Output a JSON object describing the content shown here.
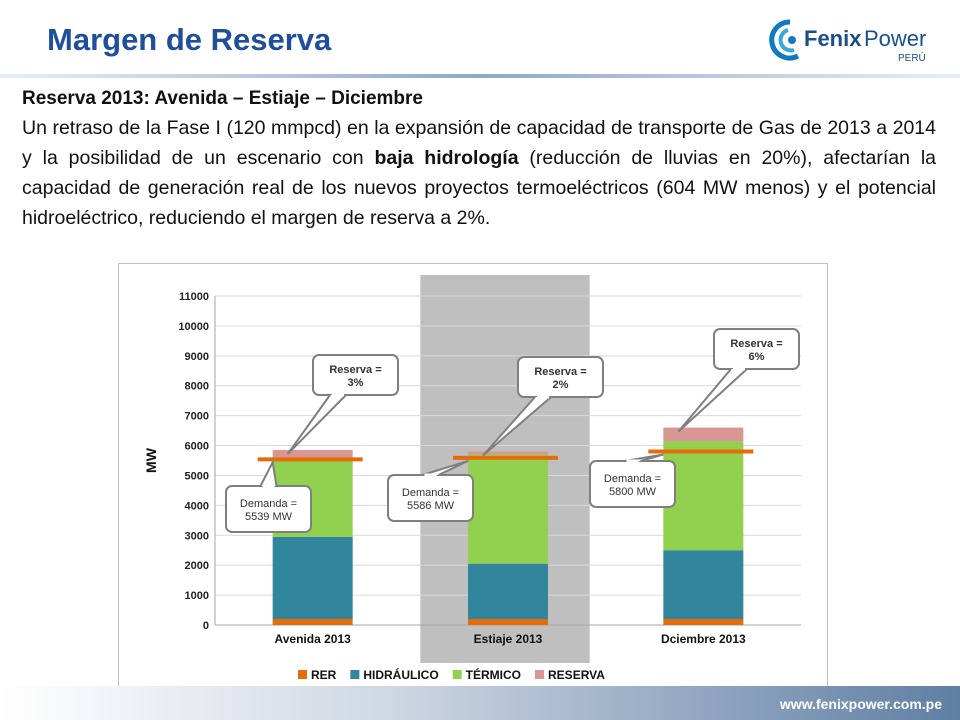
{
  "slide": {
    "title": "Margen de Reserva",
    "subtitle": "Reserva 2013: Avenida – Estiaje – Diciembre",
    "paragraph": {
      "part1": "Un retraso de la Fase I (120 mmpcd) en la expansión de capacidad de transporte de Gas de 2013 a 2014 y la posibilidad de un escenario con ",
      "bold": "baja hidrología",
      "part2": " (reducción de lluvias en 20%), afectarían la capacidad de generación real de los nuevos proyectos  termoeléctricos  (604 MW menos) y el potencial hidroeléctrico, reduciendo el margen de  reserva a 2%."
    },
    "footer_url": "www.fenixpower.com.pe"
  },
  "logo": {
    "name": "Fenix Power",
    "word1": "Fenix",
    "word2": "Power",
    "country": "PERÚ"
  },
  "colors": {
    "title": "#1f4e9a",
    "RER": "#e46c0a",
    "HIDRAULICO": "#31859c",
    "TERMICO": "#92d050",
    "RESERVA": "#d99694",
    "demand_line": "#e46c0a",
    "highlight": "#bfbfbf"
  },
  "chart_data": {
    "type": "bar",
    "stacked": true,
    "categories": [
      "Avenida 2013",
      "Estiaje 2013",
      "Dciembre 2013"
    ],
    "highlighted_category": "Estiaje 2013",
    "ylabel": "MW",
    "ylim": [
      0,
      11000
    ],
    "yticks": [
      0,
      1000,
      2000,
      3000,
      4000,
      5000,
      6000,
      7000,
      8000,
      9000,
      10000,
      11000
    ],
    "grid": true,
    "legend_position": "bottom",
    "series": [
      {
        "name": "RER",
        "values": [
          200,
          200,
          200
        ]
      },
      {
        "name": "HIDRÁULICO",
        "values": [
          2750,
          1850,
          2300
        ]
      },
      {
        "name": "TÉRMICO",
        "values": [
          2650,
          3650,
          3650
        ]
      },
      {
        "name": "RESERVA",
        "values": [
          250,
          100,
          450
        ]
      }
    ],
    "demand": [
      5539,
      5586,
      5800
    ],
    "callouts": {
      "demand": [
        {
          "line1": "Demanda =",
          "line2": "5539 MW"
        },
        {
          "line1": "Demanda =",
          "line2": "5586 MW"
        },
        {
          "line1": "Demanda =",
          "line2": "5800 MW"
        }
      ],
      "reserve": [
        {
          "line1": "Reserva =",
          "line2": "3%"
        },
        {
          "line1": "Reserva =",
          "line2": "2%"
        },
        {
          "line1": "Reserva =",
          "line2": "6%"
        }
      ]
    }
  }
}
